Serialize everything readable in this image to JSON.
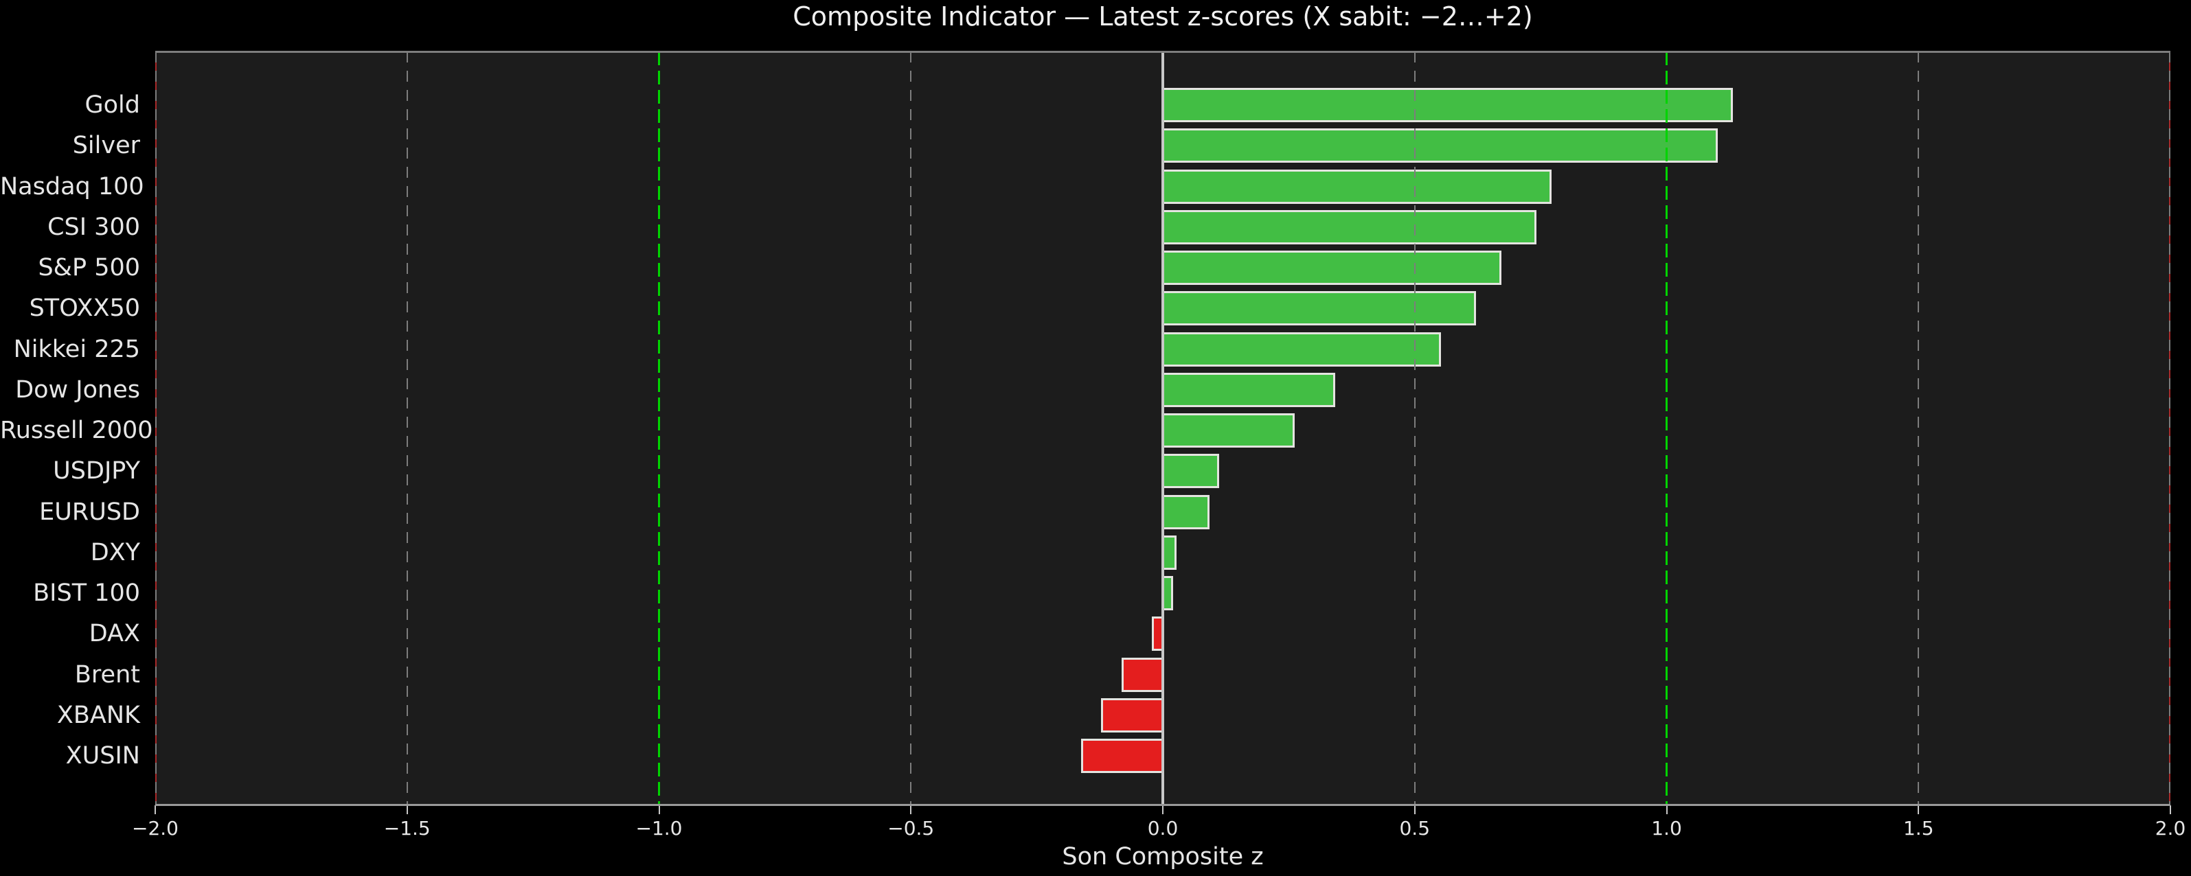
{
  "chart_data": {
    "type": "bar",
    "orientation": "horizontal",
    "title": "Composite Indicator — Latest z-scores (X sabit: −2…+2)",
    "xlabel": "Son Composite z",
    "ylabel": "",
    "xlim": [
      -2,
      2
    ],
    "xticks": [
      -2.0,
      -1.5,
      -1.0,
      -0.5,
      0.0,
      0.5,
      1.0,
      1.5,
      2.0
    ],
    "xtick_labels": [
      "−2.0",
      "−1.5",
      "−1.0",
      "−0.5",
      "0.0",
      "0.5",
      "1.0",
      "1.5",
      "2.0"
    ],
    "grid": true,
    "legend": null,
    "categories": [
      "Gold",
      "Silver",
      "Nasdaq 100",
      "CSI 300",
      "S&P 500",
      "STOXX50",
      "Nikkei 225",
      "Dow Jones",
      "Russell 2000",
      "USDJPY",
      "EURUSD",
      "DXY",
      "BIST 100",
      "DAX",
      "Brent",
      "XBANK",
      "XUSIN"
    ],
    "values": [
      1.13,
      1.1,
      0.77,
      0.74,
      0.67,
      0.62,
      0.55,
      0.34,
      0.26,
      0.11,
      0.09,
      0.025,
      0.018,
      -0.02,
      -0.08,
      -0.12,
      -0.16
    ],
    "reference_lines": [
      {
        "x": -1.0,
        "style": "dashed",
        "color": "#00d400"
      },
      {
        "x": 1.0,
        "style": "dashed",
        "color": "#00d400"
      },
      {
        "x": 0.0,
        "style": "solid",
        "color": "#c8c8c8"
      }
    ],
    "colors": {
      "positive_bar": "#42be44",
      "negative_bar": "#e41e1e",
      "bar_edge": "#e4e4e0",
      "plot_background": "#1c1c1c",
      "figure_background": "#000000",
      "grid_line": "#7d7d7d",
      "zero_line": "#c8c8c8",
      "reference_line": "#00d400",
      "spine_side": "#a82a2a",
      "spine_top": "#7d7d7d",
      "spine_bottom": "#9a9a9a",
      "text": "#e6e6e6"
    }
  }
}
